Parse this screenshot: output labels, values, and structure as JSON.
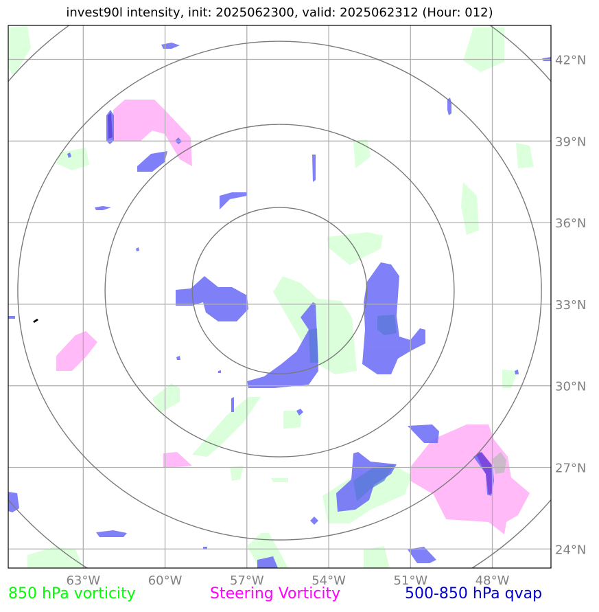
{
  "title": "invest90l intensity, init: 2025062300, valid: 2025062312 (Hour: 012)",
  "map": {
    "longitudes": [
      {
        "value": -63,
        "label": "63°W"
      },
      {
        "value": -60,
        "label": "60°W"
      },
      {
        "value": -57,
        "label": "57°W"
      },
      {
        "value": -54,
        "label": "54°W"
      },
      {
        "value": -51,
        "label": "51°W"
      },
      {
        "value": -48,
        "label": "48°W"
      }
    ],
    "latitudes": [
      {
        "value": 42,
        "label": "42°N"
      },
      {
        "value": 39,
        "label": "39°N"
      },
      {
        "value": 36,
        "label": "36°N"
      },
      {
        "value": 33,
        "label": "33°N"
      },
      {
        "value": 30,
        "label": "30°N"
      },
      {
        "value": 27,
        "label": "27°N"
      },
      {
        "value": 24,
        "label": "24°N"
      }
    ],
    "extent": {
      "lon_min": -65.75,
      "lon_max": -45.85,
      "lat_min": 23.3,
      "lat_max": 43.25
    },
    "storm_center": {
      "lon": -55.8,
      "lat": 33.5
    },
    "range_rings_deg": [
      3.2,
      6.4,
      9.6,
      12.8
    ],
    "colors": {
      "vorticity_850": "#d8ffd8",
      "steering_vorticity": "#ffb6f7",
      "qvap": "#6e6ef7",
      "gridline": "#b0b0b0",
      "ring": "#7a7a7a"
    }
  },
  "legend": {
    "vorticity_850": {
      "label": "850 hPa vorticity",
      "color": "#00ff00"
    },
    "steering": {
      "label": "Steering Vorticity",
      "color": "#ff00ff"
    },
    "qvap": {
      "label": "500-850 hPa qvap",
      "color": "#0000cc"
    }
  }
}
